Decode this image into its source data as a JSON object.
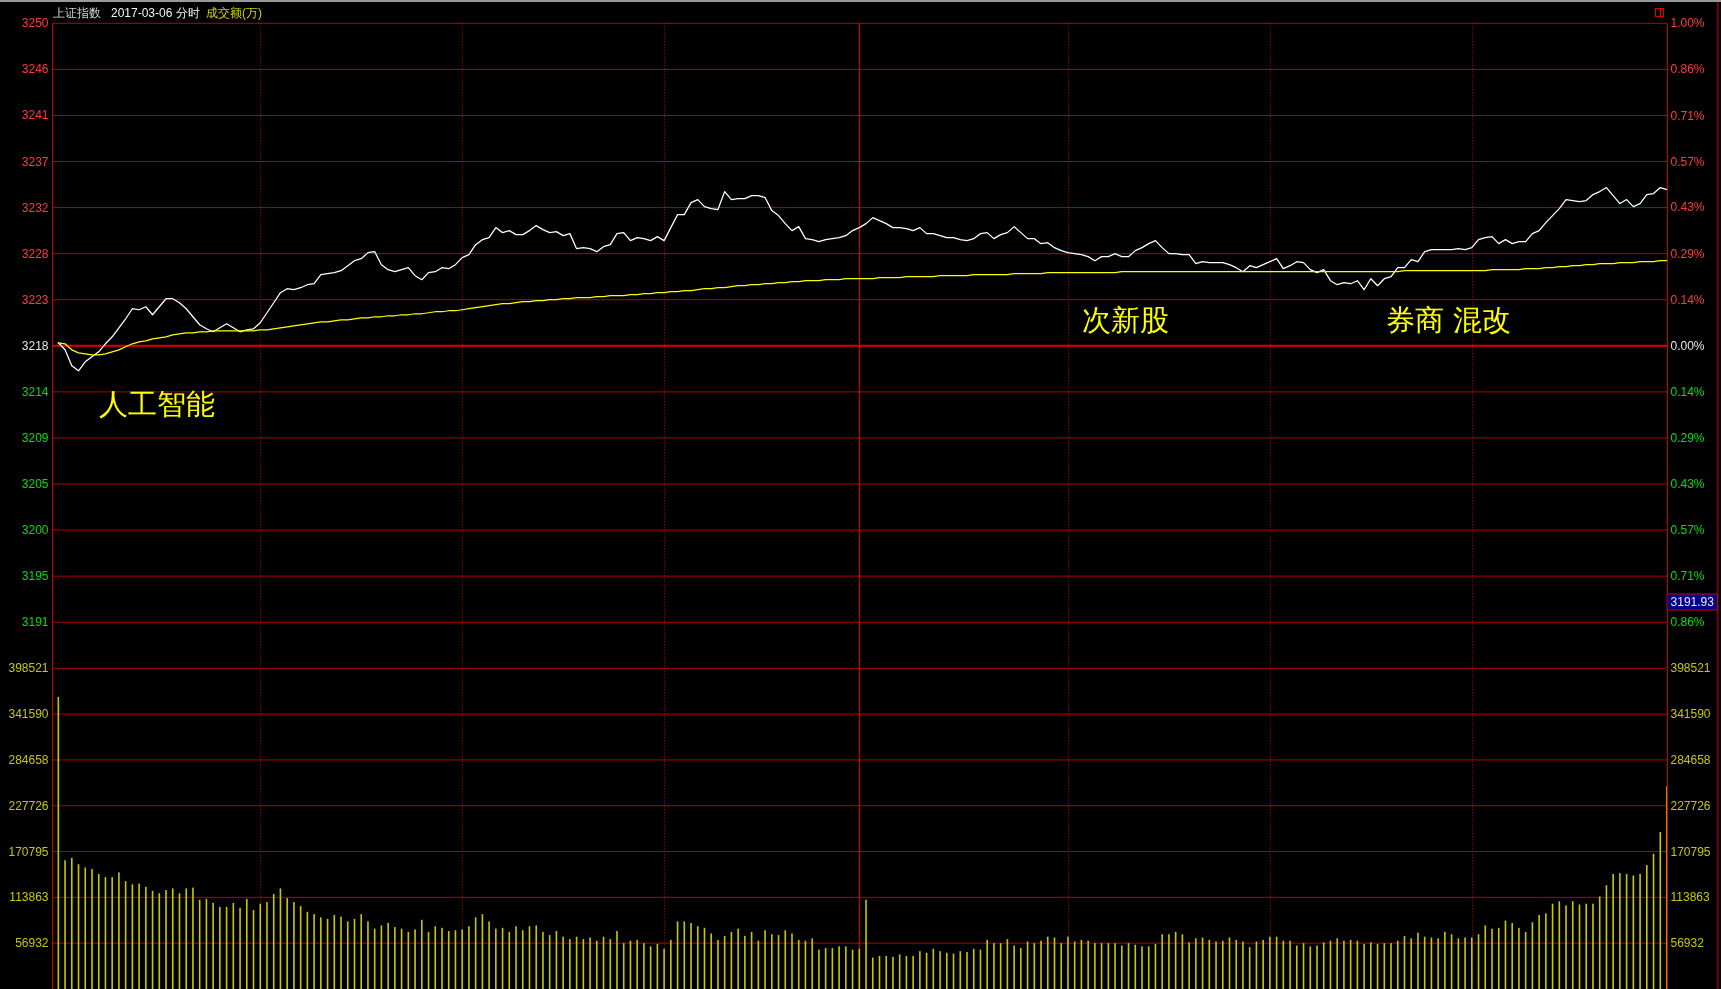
{
  "chart_data": [
    {
      "type": "line",
      "title": "上证指数",
      "subtitle": "2017-03-06 分时",
      "categories": [
        null,
        null,
        null,
        null,
        null,
        null,
        null,
        null,
        null,
        null,
        null,
        null,
        null,
        null,
        null,
        null,
        null,
        null,
        null,
        null,
        null,
        null,
        null,
        null,
        null,
        null,
        null,
        null,
        null,
        null,
        null,
        null,
        null,
        null,
        null,
        null,
        null,
        null,
        null,
        null,
        null,
        null,
        null,
        null,
        null,
        null,
        null,
        null,
        null,
        null,
        null,
        null,
        null,
        null,
        null,
        null,
        null,
        null,
        null,
        null,
        null,
        null,
        null,
        null,
        null,
        null,
        null,
        null,
        null,
        null,
        null,
        null,
        null,
        null,
        null,
        null,
        null,
        null,
        null,
        null,
        null,
        null,
        null,
        null,
        null,
        null,
        null,
        null,
        null,
        null,
        null,
        null,
        null,
        null,
        null,
        null,
        null,
        null,
        null,
        null,
        null,
        null,
        null,
        null,
        null,
        null,
        null,
        null,
        null,
        null,
        null,
        null,
        null,
        null,
        null,
        null,
        null,
        null,
        null,
        null,
        null,
        null,
        null,
        null,
        null,
        null,
        null,
        null,
        null,
        null,
        null,
        null,
        null,
        null,
        null,
        null,
        null,
        null,
        null,
        null,
        null,
        null,
        null,
        null,
        null,
        null,
        null,
        null,
        null,
        null,
        null,
        null,
        null,
        null,
        null,
        null,
        null,
        null,
        null,
        null,
        null,
        null,
        null,
        null,
        null,
        null,
        null,
        null,
        null,
        null,
        null,
        null,
        null,
        null,
        null,
        null,
        null,
        null,
        null,
        null,
        null,
        null,
        null,
        null,
        null,
        null,
        null,
        null,
        null,
        null,
        null,
        null,
        null,
        null,
        null,
        null,
        null,
        null,
        null,
        null,
        null,
        null,
        null,
        null,
        null,
        null,
        null,
        null,
        null,
        null,
        null,
        null,
        null,
        null,
        null,
        null,
        null,
        null,
        null,
        null,
        null,
        null,
        null,
        null,
        null,
        null,
        null,
        null,
        null,
        null,
        null,
        null,
        null,
        null,
        null,
        null,
        null,
        null,
        null,
        null
      ],
      "series": [
        {
          "color": "#ffffff",
          "values": [
            3218.6,
            3217.9,
            3216.3,
            3215.8,
            3216.7,
            3217.2,
            3217.7,
            3218.5,
            3219.2,
            3220.1,
            3221.0,
            3222.0,
            3221.9,
            3222.2,
            3221.4,
            3222.2,
            3223.0,
            3223.0,
            3222.6,
            3222.0,
            3221.2,
            3220.4,
            3220.0,
            3219.7,
            3220.1,
            3220.5,
            3220.1,
            3219.7,
            3219.9,
            3220.0,
            3220.6,
            3221.6,
            3222.6,
            3223.6,
            3224.0,
            3223.9,
            3224.1,
            3224.4,
            3224.5,
            3225.4,
            3225.5,
            3225.6,
            3225.8,
            3226.3,
            3226.8,
            3227.0,
            3227.6,
            3227.7,
            3226.4,
            3225.9,
            3225.7,
            3225.9,
            3226.1,
            3225.3,
            3224.9,
            3225.6,
            3225.7,
            3226.1,
            3226.0,
            3226.4,
            3227.1,
            3227.4,
            3228.4,
            3228.9,
            3229.1,
            3230.1,
            3229.6,
            3229.8,
            3229.4,
            3229.4,
            3229.8,
            3230.3,
            3229.9,
            3229.6,
            3229.7,
            3229.3,
            3229.5,
            3228.0,
            3228.1,
            3228.0,
            3227.7,
            3228.2,
            3228.4,
            3229.5,
            3229.6,
            3228.8,
            3229.1,
            3229.0,
            3228.8,
            3229.2,
            3228.8,
            3230.1,
            3231.4,
            3231.4,
            3232.6,
            3232.9,
            3232.2,
            3232.0,
            3231.9,
            3233.7,
            3232.9,
            3233.0,
            3233.0,
            3233.3,
            3233.3,
            3233.1,
            3231.8,
            3231.3,
            3230.5,
            3229.8,
            3230.2,
            3229.0,
            3228.9,
            3228.7,
            3228.9,
            3229.0,
            3229.1,
            3229.3,
            3229.8,
            3230.1,
            3230.5,
            3231.1,
            3230.8,
            3230.5,
            3230.1,
            3230.1,
            3230.0,
            3229.8,
            3230.1,
            3229.5,
            3229.5,
            3229.3,
            3229.1,
            3229.1,
            3228.9,
            3228.8,
            3229.0,
            3229.5,
            3229.6,
            3229.0,
            3229.4,
            3229.6,
            3230.2,
            3229.6,
            3229.0,
            3229.0,
            3228.5,
            3228.6,
            3228.1,
            3227.8,
            3227.6,
            3227.5,
            3227.4,
            3227.2,
            3226.8,
            3227.2,
            3227.2,
            3227.5,
            3227.2,
            3227.2,
            3227.8,
            3228.1,
            3228.5,
            3228.8,
            3228.1,
            3227.5,
            3227.5,
            3227.4,
            3227.4,
            3226.5,
            3226.7,
            3226.6,
            3226.6,
            3226.6,
            3226.4,
            3226.1,
            3225.7,
            3226.3,
            3226.1,
            3226.4,
            3226.7,
            3227.0,
            3226.0,
            3226.3,
            3226.7,
            3226.6,
            3225.9,
            3225.6,
            3225.9,
            3224.8,
            3224.4,
            3224.6,
            3224.5,
            3224.8,
            3223.9,
            3225.0,
            3224.3,
            3225.0,
            3225.2,
            3226.1,
            3226.1,
            3226.9,
            3226.7,
            3227.7,
            3227.9,
            3227.9,
            3227.9,
            3227.9,
            3228.0,
            3227.9,
            3228.1,
            3228.9,
            3229.1,
            3229.2,
            3228.5,
            3228.9,
            3228.5,
            3228.7,
            3228.7,
            3229.5,
            3229.8,
            3230.6,
            3231.3,
            3232.0,
            3232.9,
            3232.8,
            3232.7,
            3232.8,
            3233.4,
            3233.7,
            3234.1,
            3233.3,
            3232.5,
            3232.9,
            3232.2,
            3232.5,
            3233.4,
            3233.5,
            3234.1,
            3233.9
          ]
        },
        {
          "color": "#ffff00",
          "values": [
            3218.6,
            3218.5,
            3217.9,
            3217.6,
            3217.5,
            3217.4,
            3217.4,
            3217.5,
            3217.7,
            3217.9,
            3218.2,
            3218.5,
            3218.7,
            3218.8,
            3219.0,
            3219.1,
            3219.2,
            3219.4,
            3219.5,
            3219.6,
            3219.6,
            3219.7,
            3219.7,
            3219.8,
            3219.8,
            3219.8,
            3219.8,
            3219.8,
            3219.8,
            3219.8,
            3219.9,
            3219.9,
            3220.0,
            3220.1,
            3220.2,
            3220.3,
            3220.4,
            3220.5,
            3220.6,
            3220.7,
            3220.7,
            3220.8,
            3220.9,
            3220.9,
            3221.0,
            3221.1,
            3221.1,
            3221.2,
            3221.2,
            3221.3,
            3221.3,
            3221.4,
            3221.4,
            3221.5,
            3221.5,
            3221.6,
            3221.7,
            3221.7,
            3221.8,
            3221.8,
            3221.9,
            3222.0,
            3222.1,
            3222.2,
            3222.3,
            3222.4,
            3222.5,
            3222.5,
            3222.6,
            3222.7,
            3222.7,
            3222.8,
            3222.8,
            3222.9,
            3222.9,
            3223.0,
            3223.0,
            3223.1,
            3223.1,
            3223.1,
            3223.2,
            3223.2,
            3223.3,
            3223.3,
            3223.3,
            3223.4,
            3223.4,
            3223.5,
            3223.5,
            3223.6,
            3223.6,
            3223.7,
            3223.7,
            3223.8,
            3223.8,
            3223.9,
            3224.0,
            3224.0,
            3224.1,
            3224.1,
            3224.2,
            3224.3,
            3224.3,
            3224.4,
            3224.4,
            3224.5,
            3224.5,
            3224.6,
            3224.6,
            3224.7,
            3224.7,
            3224.8,
            3224.8,
            3224.8,
            3224.9,
            3224.9,
            3224.9,
            3225.0,
            3225.0,
            3225.0,
            3225.0,
            3225.0,
            3225.1,
            3225.1,
            3225.1,
            3225.1,
            3225.2,
            3225.2,
            3225.2,
            3225.2,
            3225.2,
            3225.3,
            3225.3,
            3225.3,
            3225.3,
            3225.3,
            3225.4,
            3225.4,
            3225.4,
            3225.4,
            3225.4,
            3225.4,
            3225.5,
            3225.5,
            3225.5,
            3225.5,
            3225.5,
            3225.6,
            3225.6,
            3225.6,
            3225.6,
            3225.6,
            3225.6,
            3225.6,
            3225.6,
            3225.6,
            3225.6,
            3225.6,
            3225.7,
            3225.7,
            3225.7,
            3225.7,
            3225.7,
            3225.7,
            3225.7,
            3225.7,
            3225.7,
            3225.7,
            3225.7,
            3225.7,
            3225.7,
            3225.7,
            3225.7,
            3225.7,
            3225.7,
            3225.7,
            3225.7,
            3225.7,
            3225.7,
            3225.7,
            3225.7,
            3225.7,
            3225.7,
            3225.7,
            3225.7,
            3225.7,
            3225.7,
            3225.7,
            3225.7,
            3225.7,
            3225.7,
            3225.7,
            3225.7,
            3225.7,
            3225.7,
            3225.7,
            3225.7,
            3225.7,
            3225.7,
            3225.7,
            3225.8,
            3225.8,
            3225.8,
            3225.8,
            3225.8,
            3225.8,
            3225.8,
            3225.8,
            3225.8,
            3225.8,
            3225.8,
            3225.8,
            3225.8,
            3225.9,
            3225.9,
            3225.9,
            3225.9,
            3225.9,
            3226.0,
            3226.0,
            3226.0,
            3226.1,
            3226.1,
            3226.2,
            3226.2,
            3226.3,
            3226.3,
            3226.4,
            3226.4,
            3226.5,
            3226.5,
            3226.5,
            3226.6,
            3226.6,
            3226.6,
            3226.7,
            3226.7,
            3226.7,
            3226.8,
            3226.8
          ]
        }
      ],
      "ylim": [
        3186.1,
        3250.5
      ],
      "yticks": [
        {
          "value": 3250.5,
          "label": "3250"
        },
        {
          "value": 3245.9,
          "label": "3246"
        },
        {
          "value": 3241.3,
          "label": "3241"
        },
        {
          "value": 3236.7,
          "label": "3237"
        },
        {
          "value": 3232.1,
          "label": "3232"
        },
        {
          "value": 3227.5,
          "label": "3228"
        },
        {
          "value": 3222.9,
          "label": "3223"
        },
        {
          "value": 3218.3,
          "label": "3218"
        },
        {
          "value": 3213.7,
          "label": "3214"
        },
        {
          "value": 3209.1,
          "label": "3209"
        },
        {
          "value": 3204.5,
          "label": "3205"
        },
        {
          "value": 3199.9,
          "label": "3200"
        },
        {
          "value": 3195.3,
          "label": "3195"
        },
        {
          "value": 3190.7,
          "label": "3191"
        }
      ],
      "y2lim": [
        -1,
        1
      ],
      "y2ticks": [
        {
          "value": 1,
          "label": "1.00%"
        },
        {
          "value": 0.857,
          "label": "0.86%"
        },
        {
          "value": 0.714,
          "label": "0.71%"
        },
        {
          "value": 0.571,
          "label": "0.57%"
        },
        {
          "value": 0.429,
          "label": "0.43%"
        },
        {
          "value": 0.286,
          "label": "0.29%"
        },
        {
          "value": 0.143,
          "label": "0.14%"
        },
        {
          "value": 0,
          "label": "0.00%"
        },
        {
          "value": -0.143,
          "label": "0.14%"
        },
        {
          "value": -0.286,
          "label": "0.29%"
        },
        {
          "value": -0.429,
          "label": "0.43%"
        },
        {
          "value": -0.571,
          "label": "0.57%"
        },
        {
          "value": -0.714,
          "label": "0.71%"
        },
        {
          "value": -0.857,
          "label": "0.86%"
        }
      ],
      "grid": true,
      "ref_lines": [
        {
          "axis": "y2",
          "value": 0,
          "color": "#d20000"
        }
      ],
      "annotations": [
        "成交额(万)",
        "人工智能",
        "次新股",
        "券商 混改",
        "3191.93"
      ]
    },
    {
      "type": "bar",
      "categories": [
        null,
        null,
        null,
        null,
        null,
        null,
        null,
        null,
        null,
        null,
        null,
        null,
        null,
        null,
        null,
        null,
        null,
        null,
        null,
        null,
        null,
        null,
        null,
        null,
        null,
        null,
        null,
        null,
        null,
        null,
        null,
        null,
        null,
        null,
        null,
        null,
        null,
        null,
        null,
        null,
        null,
        null,
        null,
        null,
        null,
        null,
        null,
        null,
        null,
        null,
        null,
        null,
        null,
        null,
        null,
        null,
        null,
        null,
        null,
        null,
        null,
        null,
        null,
        null,
        null,
        null,
        null,
        null,
        null,
        null,
        null,
        null,
        null,
        null,
        null,
        null,
        null,
        null,
        null,
        null,
        null,
        null,
        null,
        null,
        null,
        null,
        null,
        null,
        null,
        null,
        null,
        null,
        null,
        null,
        null,
        null,
        null,
        null,
        null,
        null,
        null,
        null,
        null,
        null,
        null,
        null,
        null,
        null,
        null,
        null,
        null,
        null,
        null,
        null,
        null,
        null,
        null,
        null,
        null,
        null,
        null,
        null,
        null,
        null,
        null,
        null,
        null,
        null,
        null,
        null,
        null,
        null,
        null,
        null,
        null,
        null,
        null,
        null,
        null,
        null,
        null,
        null,
        null,
        null,
        null,
        null,
        null,
        null,
        null,
        null,
        null,
        null,
        null,
        null,
        null,
        null,
        null,
        null,
        null,
        null,
        null,
        null,
        null,
        null,
        null,
        null,
        null,
        null,
        null,
        null,
        null,
        null,
        null,
        null,
        null,
        null,
        null,
        null,
        null,
        null,
        null,
        null,
        null,
        null,
        null,
        null,
        null,
        null,
        null,
        null,
        null,
        null,
        null,
        null,
        null,
        null,
        null,
        null,
        null,
        null,
        null,
        null,
        null,
        null,
        null,
        null,
        null,
        null,
        null,
        null,
        null,
        null,
        null,
        null,
        null,
        null,
        null,
        null,
        null,
        null,
        null,
        null,
        null,
        null,
        null,
        null,
        null,
        null,
        null,
        null,
        null,
        null,
        null,
        null,
        null,
        null,
        null,
        null,
        null,
        null
      ],
      "values": [
        363000,
        160000,
        163000,
        155000,
        151000,
        149000,
        143000,
        139000,
        139000,
        145000,
        134000,
        130000,
        131000,
        127000,
        122000,
        119000,
        123000,
        125000,
        119000,
        125000,
        126000,
        111000,
        112000,
        107000,
        102000,
        102000,
        107000,
        101000,
        112000,
        98000,
        106000,
        108000,
        118000,
        125000,
        113000,
        108000,
        103000,
        96000,
        93000,
        89000,
        87000,
        92000,
        90000,
        84000,
        87000,
        93000,
        84000,
        75000,
        79000,
        82000,
        77000,
        75000,
        71000,
        74000,
        86000,
        71000,
        78000,
        76000,
        72000,
        73000,
        74000,
        78000,
        89000,
        93000,
        84000,
        75000,
        76000,
        71000,
        78000,
        73000,
        78000,
        79000,
        71000,
        67000,
        72000,
        65000,
        62000,
        65000,
        62000,
        64000,
        60000,
        65000,
        62000,
        72000,
        57000,
        60000,
        61000,
        57000,
        53000,
        56000,
        50000,
        61000,
        84000,
        84000,
        82000,
        78000,
        76000,
        69000,
        61000,
        66000,
        71000,
        75000,
        66000,
        71000,
        60000,
        73000,
        68000,
        67000,
        73000,
        69000,
        61000,
        60000,
        63000,
        49000,
        51000,
        51000,
        53000,
        53000,
        49000,
        50000,
        111000,
        39000,
        41000,
        41000,
        40000,
        43000,
        41000,
        41000,
        47000,
        45000,
        50000,
        47000,
        45000,
        44000,
        47000,
        46000,
        50000,
        49000,
        61000,
        57000,
        57000,
        62000,
        54000,
        51000,
        59000,
        57000,
        60000,
        65000,
        64000,
        57000,
        65000,
        59000,
        61000,
        60000,
        57000,
        57000,
        57000,
        57000,
        54000,
        57000,
        55000,
        53000,
        53000,
        56000,
        68000,
        68000,
        71000,
        68000,
        58000,
        63000,
        64000,
        61000,
        59000,
        60000,
        64000,
        61000,
        59000,
        52000,
        59000,
        61000,
        65000,
        65000,
        60000,
        60000,
        54000,
        57000,
        53000,
        54000,
        58000,
        60000,
        63000,
        60000,
        61000,
        60000,
        56000,
        58000,
        56000,
        57000,
        57000,
        60000,
        66000,
        63000,
        70000,
        65000,
        64000,
        63000,
        71000,
        68000,
        63000,
        64000,
        64000,
        68000,
        79000,
        75000,
        76000,
        85000,
        82000,
        76000,
        71000,
        83000,
        92000,
        94000,
        106000,
        109000,
        104000,
        109000,
        105000,
        106000,
        106000,
        115000,
        129000,
        143000,
        144000,
        143000,
        141000,
        143000,
        154000,
        168000,
        195000,
        252000
      ],
      "color": "#c8c800",
      "ylim": [
        0,
        398521
      ],
      "yticks": [
        56932,
        113863,
        170795,
        227726,
        284658,
        341590,
        398521
      ],
      "y2lim": [
        0,
        398521
      ],
      "y2ticks": [
        56932,
        113863,
        170795,
        227726,
        284658,
        341590,
        398521
      ],
      "grid": true
    }
  ]
}
